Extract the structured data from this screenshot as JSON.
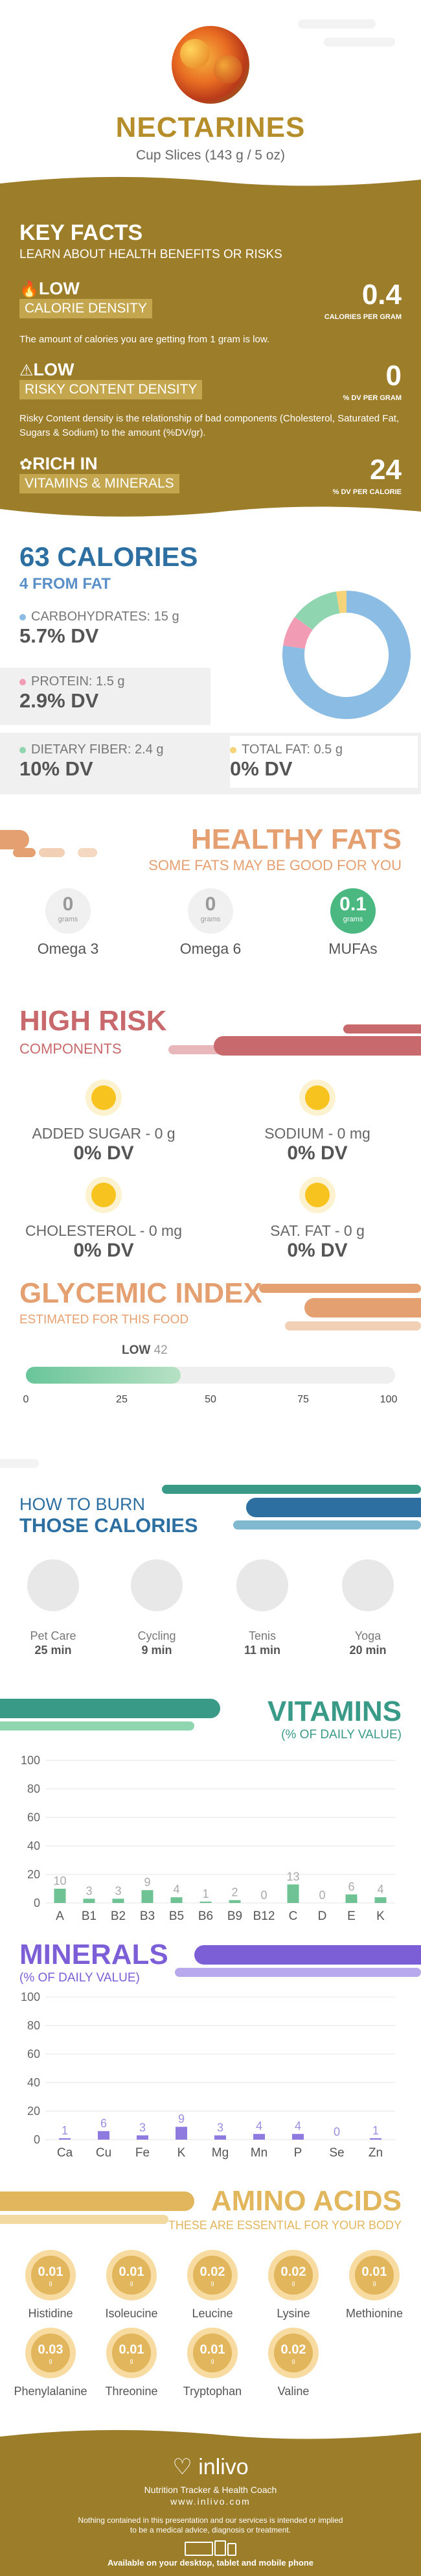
{
  "header": {
    "title": "NECTARINES",
    "subtitle": "Cup Slices (143 g / 5 oz)"
  },
  "key_facts": {
    "title": "KEY FACTS",
    "subtitle": "LEARN ABOUT HEALTH BENEFITS OR RISKS",
    "calorie": {
      "level": "LOW",
      "label": "CALORIE DENSITY",
      "value": "0.4",
      "unit": "CALORIES PER GRAM",
      "desc": "The amount of calories you are getting from 1 gram is low."
    },
    "risky": {
      "level": "LOW",
      "label": "RISKY CONTENT DENSITY",
      "value": "0",
      "unit": "% DV PER GRAM",
      "desc": "Risky Content density is the relationship of bad components (Cholesterol, Saturated Fat, Sugars & Sodium) to the amount (%DV/gr)."
    },
    "rich": {
      "level": "RICH  IN",
      "label": "VITAMINS & MINERALS",
      "value": "24",
      "unit": "% DV PER CALORIE"
    }
  },
  "calories": {
    "title": "63 CALORIES",
    "subtitle": "4 FROM FAT",
    "carbs": {
      "label": "CARBOHYDRATES: 15 g",
      "dv": "5.7% DV",
      "color": "#8bbce3"
    },
    "protein": {
      "label": "PROTEIN: 1.5 g",
      "dv": "2.9% DV",
      "color": "#f29bb4"
    },
    "fiber": {
      "label": "DIETARY FIBER: 2.4 g",
      "dv": "10% DV",
      "color": "#8fd6b0"
    },
    "fat": {
      "label": "TOTAL FAT: 0.5 g",
      "dv": "0% DV",
      "color": "#f5d37a"
    }
  },
  "chart_data": [
    {
      "type": "pie",
      "categories": [
        "Carbohydrates",
        "Protein",
        "Dietary Fiber",
        "Total Fat"
      ],
      "values": [
        15,
        1.5,
        2.4,
        0.5
      ]
    },
    {
      "type": "bar",
      "title": "VITAMINS",
      "categories": [
        "A",
        "B1",
        "B2",
        "B3",
        "B5",
        "B6",
        "B9",
        "B12",
        "C",
        "D",
        "E",
        "K"
      ],
      "values": [
        10,
        3,
        3,
        9,
        4,
        1,
        2,
        0,
        13,
        0,
        6,
        4
      ],
      "ylim": [
        0,
        100
      ],
      "yticks": [
        0,
        20,
        40,
        60,
        80,
        100
      ]
    },
    {
      "type": "bar",
      "title": "MINERALS",
      "categories": [
        "Ca",
        "Cu",
        "Fe",
        "K",
        "Mg",
        "Mn",
        "P",
        "Se",
        "Zn"
      ],
      "values": [
        1,
        6,
        3,
        9,
        3,
        4,
        4,
        0,
        1
      ],
      "ylim": [
        0,
        100
      ],
      "yticks": [
        0,
        20,
        40,
        60,
        80,
        100
      ]
    },
    {
      "type": "bar",
      "title": "GLYCEMIC INDEX",
      "categories": [
        "GI"
      ],
      "values": [
        42
      ],
      "ylim": [
        0,
        100
      ],
      "xticks": [
        0,
        25,
        50,
        75,
        100
      ]
    }
  ],
  "fats": {
    "title": "HEALTHY FATS",
    "subtitle": "SOME FATS MAY BE GOOD FOR YOU",
    "items": [
      {
        "value": "0",
        "unit": "grams",
        "label": "Omega 3"
      },
      {
        "value": "0",
        "unit": "grams",
        "label": "Omega 6"
      },
      {
        "value": "0.1",
        "unit": "grams",
        "label": "MUFAs"
      }
    ]
  },
  "risk": {
    "title": "HIGH RISK",
    "subtitle": "COMPONENTS",
    "items": [
      {
        "label": "ADDED SUGAR - 0 g",
        "dv": "0% DV"
      },
      {
        "label": "SODIUM - 0 mg",
        "dv": "0% DV"
      },
      {
        "label": "CHOLESTEROL - 0 mg",
        "dv": "0% DV"
      },
      {
        "label": "SAT. FAT - 0 g",
        "dv": "0% DV"
      }
    ]
  },
  "gi": {
    "title": "GLYCEMIC INDEX",
    "subtitle": "ESTIMATED FOR THIS FOOD",
    "level": "LOW",
    "value": "42",
    "ticks": [
      "0",
      "25",
      "50",
      "75",
      "100"
    ]
  },
  "burn": {
    "title1": "HOW TO BURN",
    "title2": "THOSE CALORIES",
    "items": [
      {
        "label": "Pet Care",
        "time": "25 min"
      },
      {
        "label": "Cycling",
        "time": "9 min"
      },
      {
        "label": "Tenis",
        "time": "11 min"
      },
      {
        "label": "Yoga",
        "time": "20 min"
      }
    ]
  },
  "vitamins": {
    "title": "VITAMINS",
    "subtitle": "(% OF DAILY VALUE)"
  },
  "minerals": {
    "title": "MINERALS",
    "subtitle": "(% OF DAILY VALUE)"
  },
  "amino": {
    "title": "AMINO ACIDS",
    "subtitle": "THESE ARE ESSENTIAL FOR YOUR BODY",
    "items": [
      {
        "v": "0.01",
        "l": "Histidine"
      },
      {
        "v": "0.01",
        "l": "Isoleucine"
      },
      {
        "v": "0.02",
        "l": "Leucine"
      },
      {
        "v": "0.02",
        "l": "Lysine"
      },
      {
        "v": "0.01",
        "l": "Methionine"
      },
      {
        "v": "0.03",
        "l": "Phenylalanine"
      },
      {
        "v": "0.01",
        "l": "Threonine"
      },
      {
        "v": "0.01",
        "l": "Tryptophan"
      },
      {
        "v": "0.02",
        "l": "Valine"
      }
    ],
    "unit": "g"
  },
  "footer": {
    "brand": "inlivo",
    "tagline": "Nutrition Tracker & Health Coach",
    "url": "www.inlivo.com",
    "disclaimer1": "Nothing contained in this presentation and our services is intended or implied",
    "disclaimer2": "to be a medical advice, diagnosis or treatment.",
    "available": "Available on your desktop, tablet and mobile phone"
  },
  "colors": {
    "gold": "#9c7d2a",
    "orange": "#e5a072",
    "red": "#c86a6d",
    "green": "#4bb882",
    "purple": "#7c5fd6",
    "teal": "#3a9a88",
    "blue": "#2d6fa0"
  }
}
